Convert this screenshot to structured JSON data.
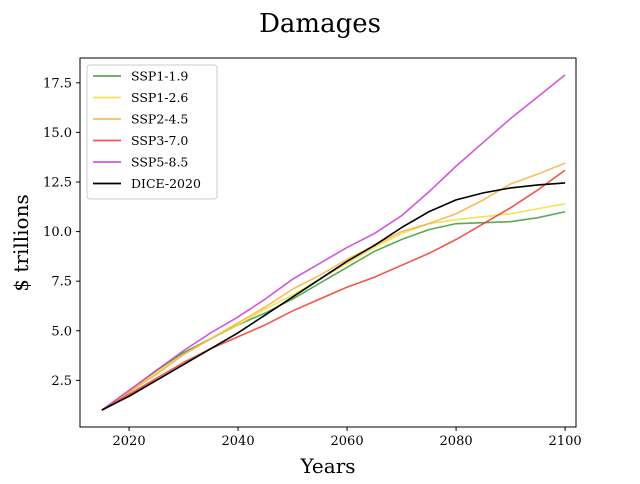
{
  "chart_data": {
    "type": "line",
    "title": "Damages",
    "xlabel": "Years",
    "ylabel": "$ trillions",
    "xlim": [
      2011,
      2102
    ],
    "ylim": [
      0.15,
      18.75
    ],
    "x_ticks": [
      2020,
      2040,
      2060,
      2080,
      2100
    ],
    "y_ticks": [
      2.5,
      5.0,
      7.5,
      10.0,
      12.5,
      15.0,
      17.5
    ],
    "x_tick_labels": [
      "2020",
      "2040",
      "2060",
      "2080",
      "2100"
    ],
    "y_tick_labels": [
      "2.5",
      "5.0",
      "7.5",
      "10.0",
      "12.5",
      "15.0",
      "17.5"
    ],
    "grid": false,
    "legend_position": "top-left",
    "x": [
      2015,
      2020,
      2025,
      2030,
      2035,
      2040,
      2045,
      2050,
      2055,
      2060,
      2065,
      2070,
      2075,
      2080,
      2085,
      2090,
      2095,
      2100
    ],
    "series": [
      {
        "name": "SSP1-1.9",
        "color": "#3a9b3a",
        "opacity": 0.85,
        "values": [
          1.0,
          1.9,
          3.0,
          3.9,
          4.6,
          5.3,
          5.9,
          6.6,
          7.4,
          8.2,
          9.0,
          9.6,
          10.1,
          10.4,
          10.45,
          10.5,
          10.7,
          11.0
        ]
      },
      {
        "name": "SSP1-2.6",
        "color": "#f4dc3a",
        "opacity": 0.85,
        "values": [
          1.0,
          1.95,
          2.9,
          3.8,
          4.6,
          5.3,
          6.1,
          6.8,
          7.6,
          8.4,
          9.2,
          9.9,
          10.4,
          10.6,
          10.75,
          10.9,
          11.15,
          11.4
        ]
      },
      {
        "name": "SSP2-4.5",
        "color": "#f7b43c",
        "opacity": 0.85,
        "values": [
          1.0,
          1.9,
          2.8,
          3.8,
          4.6,
          5.4,
          6.2,
          7.1,
          7.8,
          8.6,
          9.3,
          10.0,
          10.4,
          10.9,
          11.6,
          12.4,
          12.9,
          13.45
        ]
      },
      {
        "name": "SSP3-7.0",
        "color": "#f03a2a",
        "opacity": 0.85,
        "values": [
          1.0,
          1.8,
          2.6,
          3.4,
          4.1,
          4.7,
          5.3,
          6.0,
          6.6,
          7.2,
          7.7,
          8.3,
          8.9,
          9.6,
          10.4,
          11.2,
          12.1,
          13.1
        ]
      },
      {
        "name": "SSP5-8.5",
        "color": "#c93ad2",
        "opacity": 0.85,
        "values": [
          1.0,
          2.0,
          3.0,
          4.0,
          4.9,
          5.7,
          6.6,
          7.6,
          8.4,
          9.2,
          9.9,
          10.8,
          12.0,
          13.3,
          14.5,
          15.7,
          16.8,
          17.9
        ]
      },
      {
        "name": "DICE-2020",
        "color": "#000000",
        "opacity": 1.0,
        "values": [
          1.0,
          1.7,
          2.5,
          3.3,
          4.1,
          4.9,
          5.8,
          6.7,
          7.6,
          8.5,
          9.3,
          10.2,
          11.0,
          11.6,
          11.95,
          12.2,
          12.35,
          12.45
        ]
      }
    ]
  }
}
